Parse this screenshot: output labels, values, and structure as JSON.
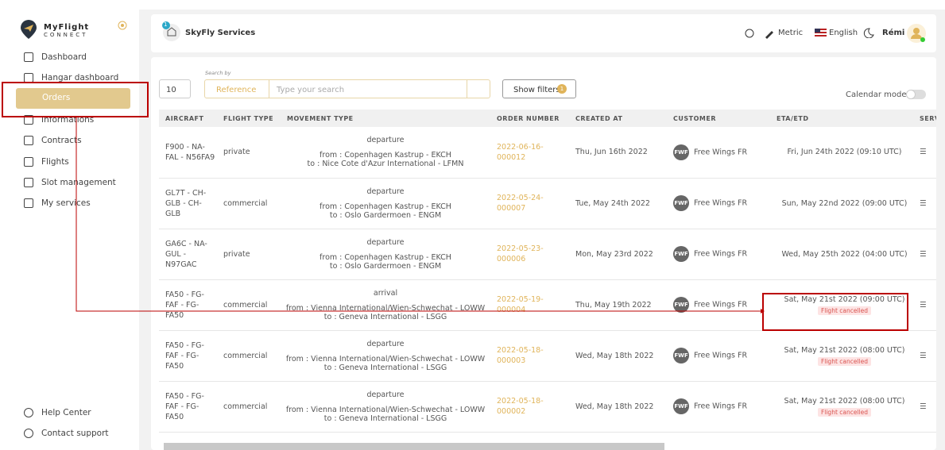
{
  "brand": {
    "name": "MyFlight",
    "sub": "CONNECT"
  },
  "nav": [
    "Dashboard",
    "Hangar dashboard",
    "Orders",
    "Informations",
    "Contracts",
    "Flights",
    "Slot management",
    "My services"
  ],
  "footer_nav": [
    "Help Center",
    "Contact support"
  ],
  "header": {
    "badge": "1",
    "title": "SkyFly Services",
    "units": "Metric",
    "language": "English",
    "user": "Rémi"
  },
  "toolbar": {
    "page_size": "10",
    "search_label": "Search by",
    "search_field": "Reference",
    "search_placeholder": "Type your search",
    "filters_button": "Show filters",
    "filters_badge": "1",
    "calendar_mode": "Calendar mode"
  },
  "table": {
    "columns": [
      "AIRCRAFT",
      "FLIGHT TYPE",
      "MOVEMENT TYPE",
      "ORDER NUMBER",
      "CREATED AT",
      "CUSTOMER",
      "ETA/ETD",
      "SERVI"
    ],
    "rows": [
      {
        "aircraft": "F900 - NA-FAL - N56FA9",
        "flight_type": "private",
        "movement": "departure",
        "from": "from : Copenhagen Kastrup - EKCH",
        "to": "to : Nice Cote d'Azur International - LFMN",
        "order": "2022-06-16-000012",
        "created": "Thu, Jun 16th 2022",
        "logo": "FWF",
        "customer": "Free Wings FR",
        "eta": "Fri, Jun 24th 2022 (09:10 UTC)"
      },
      {
        "aircraft": "GL7T - CH-GLB - CH-GLB",
        "flight_type": "commercial",
        "movement": "departure",
        "from": "from : Copenhagen Kastrup - EKCH",
        "to": "to : Oslo Gardermoen - ENGM",
        "order": "2022-05-24-000007",
        "created": "Tue, May 24th 2022",
        "logo": "FWF",
        "customer": "Free Wings FR",
        "eta": "Sun, May 22nd 2022 (09:00 UTC)"
      },
      {
        "aircraft": "GA6C - NA-GUL - N97GAC",
        "flight_type": "private",
        "movement": "departure",
        "from": "from : Copenhagen Kastrup - EKCH",
        "to": "to : Oslo Gardermoen - ENGM",
        "order": "2022-05-23-000006",
        "created": "Mon, May 23rd 2022",
        "logo": "FWF",
        "customer": "Free Wings FR",
        "eta": "Wed, May 25th 2022 (04:00 UTC)"
      },
      {
        "aircraft": "FA50 - FG-FAF - FG-FA50",
        "flight_type": "commercial",
        "movement": "arrival",
        "from": "from : Vienna International/Wien-Schwechat - LOWW",
        "to": "to : Geneva International - LSGG",
        "order": "2022-05-19-000004",
        "created": "Thu, May 19th 2022",
        "logo": "FWF",
        "customer": "Free Wings FR",
        "eta": "Sat, May 21st 2022 (09:00 UTC)",
        "status": "Flight cancelled"
      },
      {
        "aircraft": "FA50 - FG-FAF - FG-FA50",
        "flight_type": "commercial",
        "movement": "departure",
        "from": "from : Vienna International/Wien-Schwechat - LOWW",
        "to": "to : Geneva International - LSGG",
        "order": "2022-05-18-000003",
        "created": "Wed, May 18th 2022",
        "logo": "FWF",
        "customer": "Free Wings FR",
        "eta": "Sat, May 21st 2022 (08:00 UTC)",
        "status": "Flight cancelled"
      },
      {
        "aircraft": "FA50 - FG-FAF - FG-FA50",
        "flight_type": "commercial",
        "movement": "departure",
        "from": "from : Vienna International/Wien-Schwechat - LOWW",
        "to": "to : Geneva International - LSGG",
        "order": "2022-05-18-000002",
        "created": "Wed, May 18th 2022",
        "logo": "FWF",
        "customer": "Free Wings FR",
        "eta": "Sat, May 21st 2022 (08:00 UTC)",
        "status": "Flight cancelled"
      }
    ]
  }
}
